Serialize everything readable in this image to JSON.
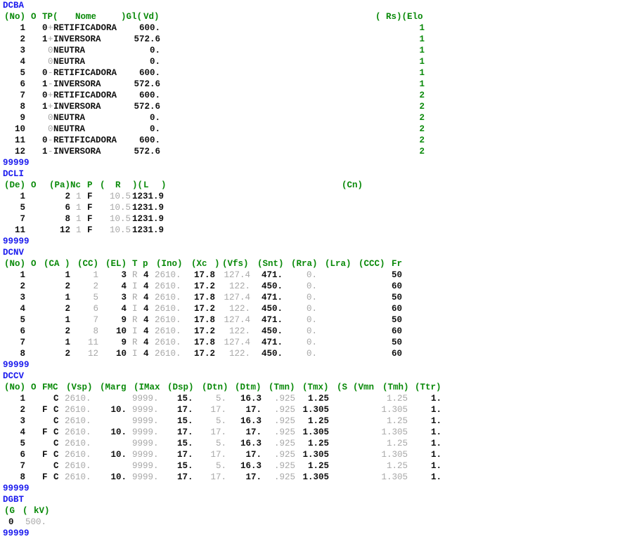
{
  "sections": [
    {
      "keyword": "DCBA",
      "header": [
        {
          "text": "(No)"
        },
        {
          "text": "O"
        },
        {
          "text": "TP("
        },
        {
          "text": "Nome"
        },
        {
          "text": ")Gl("
        },
        {
          "text": "Vd)"
        },
        {
          "text": "( Rs)(Elo"
        }
      ],
      "rows": [
        {
          "no": "1",
          "op": "0",
          "tp": "+",
          "nome": "RETIFICADORA",
          "vd": "600.",
          "elo": "1"
        },
        {
          "no": "2",
          "op": "1",
          "tp": "+",
          "nome": "INVERSORA",
          "vd": "572.6",
          "elo": "1"
        },
        {
          "no": "3",
          "op": "",
          "tp": "0",
          "nome": "NEUTRA",
          "vd": "0.",
          "elo": "1"
        },
        {
          "no": "4",
          "op": "",
          "tp": "0",
          "nome": "NEUTRA",
          "vd": "0.",
          "elo": "1"
        },
        {
          "no": "5",
          "op": "0",
          "tp": "-",
          "nome": "RETIFICADORA",
          "vd": "600.",
          "elo": "1"
        },
        {
          "no": "6",
          "op": "1",
          "tp": "-",
          "nome": "INVERSORA",
          "vd": "572.6",
          "elo": "1"
        },
        {
          "no": "7",
          "op": "0",
          "tp": "+",
          "nome": "RETIFICADORA",
          "vd": "600.",
          "elo": "2"
        },
        {
          "no": "8",
          "op": "1",
          "tp": "+",
          "nome": "INVERSORA",
          "vd": "572.6",
          "elo": "2"
        },
        {
          "no": "9",
          "op": "",
          "tp": "0",
          "nome": "NEUTRA",
          "vd": "0.",
          "elo": "2"
        },
        {
          "no": "10",
          "op": "",
          "tp": "0",
          "nome": "NEUTRA",
          "vd": "0.",
          "elo": "2"
        },
        {
          "no": "11",
          "op": "0",
          "tp": "-",
          "nome": "RETIFICADORA",
          "vd": "600.",
          "elo": "2"
        },
        {
          "no": "12",
          "op": "1",
          "tp": "-",
          "nome": "INVERSORA",
          "vd": "572.6",
          "elo": "2"
        }
      ],
      "terminator": "99999"
    },
    {
      "keyword": "DCLI",
      "header": [
        {
          "text": "(De)"
        },
        {
          "text": "O"
        },
        {
          "text": "(Pa)"
        },
        {
          "text": "Nc"
        },
        {
          "text": "P"
        },
        {
          "text": "("
        },
        {
          "text": "R"
        },
        {
          "text": ")("
        },
        {
          "text": "L"
        },
        {
          "text": ")"
        },
        {
          "text": "(Cn)"
        }
      ],
      "rows": [
        {
          "de": "1",
          "pa": "2",
          "nc": "1",
          "p": "F",
          "r": "10.5",
          "l": "1231.9"
        },
        {
          "de": "5",
          "pa": "6",
          "nc": "1",
          "p": "F",
          "r": "10.5",
          "l": "1231.9"
        },
        {
          "de": "7",
          "pa": "8",
          "nc": "1",
          "p": "F",
          "r": "10.5",
          "l": "1231.9"
        },
        {
          "de": "11",
          "pa": "12",
          "nc": "1",
          "p": "F",
          "r": "10.5",
          "l": "1231.9"
        }
      ],
      "terminator": "99999"
    },
    {
      "keyword": "DCNV",
      "header": [
        {
          "text": "(No)"
        },
        {
          "text": "O"
        },
        {
          "text": "(CA"
        },
        {
          "text": ")"
        },
        {
          "text": "(CC)"
        },
        {
          "text": "(EL)"
        },
        {
          "text": "T"
        },
        {
          "text": "p"
        },
        {
          "text": "(Ino)"
        },
        {
          "text": "(Xc"
        },
        {
          "text": ")"
        },
        {
          "text": "(Vfs)"
        },
        {
          "text": "(Snt)"
        },
        {
          "text": "(Rra)"
        },
        {
          "text": "(Lra)"
        },
        {
          "text": "(CCC)"
        },
        {
          "text": "Fr"
        }
      ],
      "rows": [
        {
          "no": "1",
          "ca": "1",
          "cc": "1",
          "el": "3",
          "t": "R",
          "p": "4",
          "ino": "2610.",
          "xc": "17.8",
          "vfs": "127.4",
          "snt": "471.",
          "rra": "0.",
          "fr": "50"
        },
        {
          "no": "2",
          "ca": "2",
          "cc": "2",
          "el": "4",
          "t": "I",
          "p": "4",
          "ino": "2610.",
          "xc": "17.2",
          "vfs": "122.",
          "snt": "450.",
          "rra": "0.",
          "fr": "60"
        },
        {
          "no": "3",
          "ca": "1",
          "cc": "5",
          "el": "3",
          "t": "R",
          "p": "4",
          "ino": "2610.",
          "xc": "17.8",
          "vfs": "127.4",
          "snt": "471.",
          "rra": "0.",
          "fr": "50"
        },
        {
          "no": "4",
          "ca": "2",
          "cc": "6",
          "el": "4",
          "t": "I",
          "p": "4",
          "ino": "2610.",
          "xc": "17.2",
          "vfs": "122.",
          "snt": "450.",
          "rra": "0.",
          "fr": "60"
        },
        {
          "no": "5",
          "ca": "1",
          "cc": "7",
          "el": "9",
          "t": "R",
          "p": "4",
          "ino": "2610.",
          "xc": "17.8",
          "vfs": "127.4",
          "snt": "471.",
          "rra": "0.",
          "fr": "50"
        },
        {
          "no": "6",
          "ca": "2",
          "cc": "8",
          "el": "10",
          "t": "I",
          "p": "4",
          "ino": "2610.",
          "xc": "17.2",
          "vfs": "122.",
          "snt": "450.",
          "rra": "0.",
          "fr": "60"
        },
        {
          "no": "7",
          "ca": "1",
          "cc": "11",
          "el": "9",
          "t": "R",
          "p": "4",
          "ino": "2610.",
          "xc": "17.8",
          "vfs": "127.4",
          "snt": "471.",
          "rra": "0.",
          "fr": "50"
        },
        {
          "no": "8",
          "ca": "2",
          "cc": "12",
          "el": "10",
          "t": "I",
          "p": "4",
          "ino": "2610.",
          "xc": "17.2",
          "vfs": "122.",
          "snt": "450.",
          "rra": "0.",
          "fr": "60"
        }
      ],
      "terminator": "99999"
    },
    {
      "keyword": "DCCV",
      "header": [
        {
          "text": "(No)"
        },
        {
          "text": "O"
        },
        {
          "text": "FMC"
        },
        {
          "text": "(Vsp)"
        },
        {
          "text": "(Marg"
        },
        {
          "text": "(IMax"
        },
        {
          "text": "(Dsp)"
        },
        {
          "text": "(Dtn)"
        },
        {
          "text": "(Dtm)"
        },
        {
          "text": "(Tmn)"
        },
        {
          "text": "(Tmx)"
        },
        {
          "text": "(S"
        },
        {
          "text": "(Vmn"
        },
        {
          "text": "(Tmh)"
        },
        {
          "text": "(Ttr)"
        }
      ],
      "rows": [
        {
          "no": "1",
          "f": "",
          "c": "C",
          "vsp": "2610.",
          "marg": "",
          "imax": "9999.",
          "dsp": "15.",
          "dtn": "5.",
          "dtm": "16.3",
          "tmn": ".925",
          "tmx": "1.25",
          "tmh": "1.25",
          "ttr": "1."
        },
        {
          "no": "2",
          "f": "F",
          "c": "C",
          "vsp": "2610.",
          "marg": "10.",
          "imax": "9999.",
          "dsp": "17.",
          "dtn": "17.",
          "dtm": "17.",
          "tmn": ".925",
          "tmx": "1.305",
          "tmh": "1.305",
          "ttr": "1."
        },
        {
          "no": "3",
          "f": "",
          "c": "C",
          "vsp": "2610.",
          "marg": "",
          "imax": "9999.",
          "dsp": "15.",
          "dtn": "5.",
          "dtm": "16.3",
          "tmn": ".925",
          "tmx": "1.25",
          "tmh": "1.25",
          "ttr": "1."
        },
        {
          "no": "4",
          "f": "F",
          "c": "C",
          "vsp": "2610.",
          "marg": "10.",
          "imax": "9999.",
          "dsp": "17.",
          "dtn": "17.",
          "dtm": "17.",
          "tmn": ".925",
          "tmx": "1.305",
          "tmh": "1.305",
          "ttr": "1."
        },
        {
          "no": "5",
          "f": "",
          "c": "C",
          "vsp": "2610.",
          "marg": "",
          "imax": "9999.",
          "dsp": "15.",
          "dtn": "5.",
          "dtm": "16.3",
          "tmn": ".925",
          "tmx": "1.25",
          "tmh": "1.25",
          "ttr": "1."
        },
        {
          "no": "6",
          "f": "F",
          "c": "C",
          "vsp": "2610.",
          "marg": "10.",
          "imax": "9999.",
          "dsp": "17.",
          "dtn": "17.",
          "dtm": "17.",
          "tmn": ".925",
          "tmx": "1.305",
          "tmh": "1.305",
          "ttr": "1."
        },
        {
          "no": "7",
          "f": "",
          "c": "C",
          "vsp": "2610.",
          "marg": "",
          "imax": "9999.",
          "dsp": "15.",
          "dtn": "5.",
          "dtm": "16.3",
          "tmn": ".925",
          "tmx": "1.25",
          "tmh": "1.25",
          "ttr": "1."
        },
        {
          "no": "8",
          "f": "F",
          "c": "C",
          "vsp": "2610.",
          "marg": "10.",
          "imax": "9999.",
          "dsp": "17.",
          "dtn": "17.",
          "dtm": "17.",
          "tmn": ".925",
          "tmx": "1.305",
          "tmh": "1.305",
          "ttr": "1."
        }
      ],
      "terminator": "99999"
    },
    {
      "keyword": "DGBT",
      "header": [
        {
          "text": "(G"
        },
        {
          "text": "("
        },
        {
          "text": "kV)"
        }
      ],
      "rows": [
        {
          "g": "0",
          "kv": "500."
        }
      ],
      "terminator": "99999"
    }
  ],
  "colors": {
    "keyword": "#1a1aee",
    "header": "#0a8a0a",
    "value": "#111111",
    "default_value": "#a8a8a8"
  }
}
